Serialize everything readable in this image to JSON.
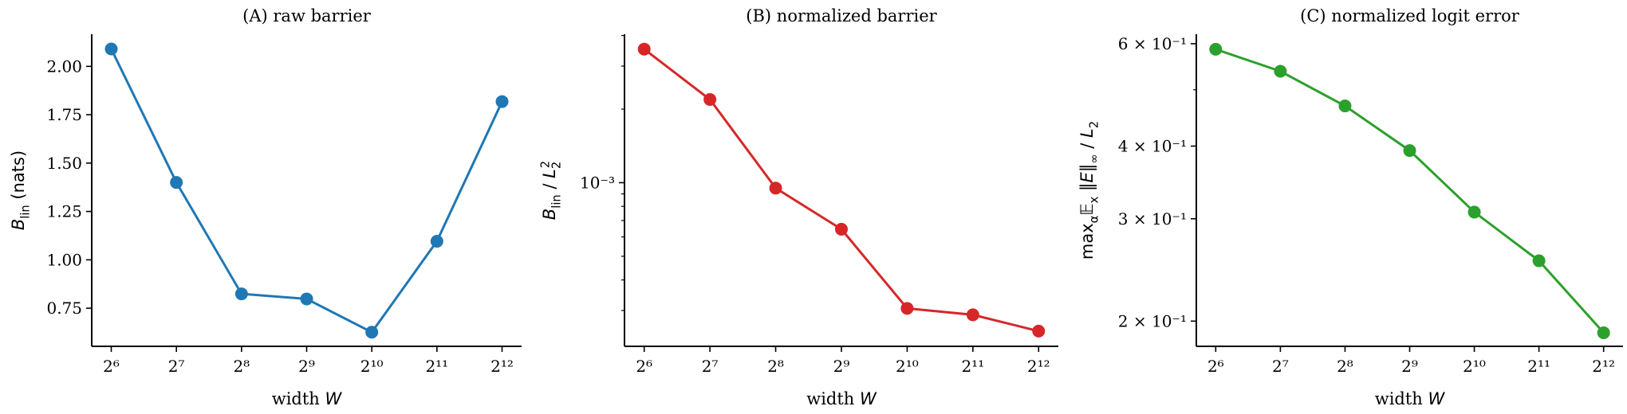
{
  "chart_data": [
    {
      "type": "line",
      "title": "(A) raw barrier",
      "xlabel_parts": [
        {
          "t": "width "
        },
        {
          "t": "W",
          "style": "italic"
        }
      ],
      "ylabel_parts": [
        {
          "t": "B",
          "style": "italic"
        },
        {
          "t": "lin",
          "style": "sub"
        },
        {
          "t": " (nats)"
        }
      ],
      "x_scale": "log2",
      "x": [
        64,
        128,
        256,
        512,
        1024,
        2048,
        4096
      ],
      "xtick_labels": [
        "2⁶",
        "2⁷",
        "2⁸",
        "2⁹",
        "2¹⁰",
        "2¹¹",
        "2¹²"
      ],
      "y_scale": "linear",
      "y": [
        2.09,
        1.4,
        0.824,
        0.798,
        0.626,
        1.096,
        1.818
      ],
      "ylim": [
        0.553,
        2.166
      ],
      "yticks": [
        0.75,
        1.0,
        1.25,
        1.5,
        1.75,
        2.0
      ],
      "ytick_labels": [
        "0.75",
        "1.00",
        "1.25",
        "1.50",
        "1.75",
        "2.00"
      ],
      "color": "#1f77b4",
      "grid": false
    },
    {
      "type": "line",
      "title": "(B) normalized barrier",
      "xlabel_parts": [
        {
          "t": "width "
        },
        {
          "t": "W",
          "style": "italic"
        }
      ],
      "ylabel_parts": [
        {
          "t": "B",
          "style": "italic"
        },
        {
          "t": "lin",
          "style": "sub"
        },
        {
          "t": " / "
        },
        {
          "t": "L",
          "style": "italic"
        },
        {
          "t": "2",
          "style": "subsup",
          "sup": "2"
        }
      ],
      "x_scale": "log2",
      "x": [
        64,
        128,
        256,
        512,
        1024,
        2048,
        4096
      ],
      "xtick_labels": [
        "2⁶",
        "2⁷",
        "2⁸",
        "2⁹",
        "2¹⁰",
        "2¹¹",
        "2¹²"
      ],
      "y_scale": "log",
      "y": [
        0.00352,
        0.00219,
        0.00095,
        0.000645,
        0.000306,
        0.000288,
        0.000247
      ],
      "ylim": [
        0.000214,
        0.00405
      ],
      "yticks": [
        0.001
      ],
      "ytick_labels": [
        "10⁻³"
      ],
      "color": "#d62728",
      "grid": false
    },
    {
      "type": "line",
      "title": "(C) normalized logit error",
      "xlabel_parts": [
        {
          "t": "width "
        },
        {
          "t": "W",
          "style": "italic"
        }
      ],
      "ylabel_parts": [
        {
          "t": "max"
        },
        {
          "t": "α",
          "style": "sub"
        },
        {
          "t": "𝔼"
        },
        {
          "t": "x",
          "style": "sub"
        },
        {
          "t": " ‖"
        },
        {
          "t": "E",
          "style": "italic"
        },
        {
          "t": "‖"
        },
        {
          "t": "∞",
          "style": "sub"
        },
        {
          "t": " / "
        },
        {
          "t": "L",
          "style": "italic"
        },
        {
          "t": "2",
          "style": "sub"
        }
      ],
      "x_scale": "log2",
      "x": [
        64,
        128,
        256,
        512,
        1024,
        2048,
        4096
      ],
      "xtick_labels": [
        "2⁶",
        "2⁷",
        "2⁸",
        "2⁹",
        "2¹⁰",
        "2¹¹",
        "2¹²"
      ],
      "y_scale": "log",
      "y": [
        0.587,
        0.538,
        0.469,
        0.393,
        0.308,
        0.254,
        0.191
      ],
      "ylim": [
        0.181,
        0.623
      ],
      "yticks": [
        0.2,
        0.3,
        0.4,
        0.6
      ],
      "ytick_labels": [
        "2 × 10⁻¹",
        "3 × 10⁻¹",
        "4 × 10⁻¹",
        "6 × 10⁻¹"
      ],
      "color": "#2ca02c",
      "grid": false
    }
  ]
}
